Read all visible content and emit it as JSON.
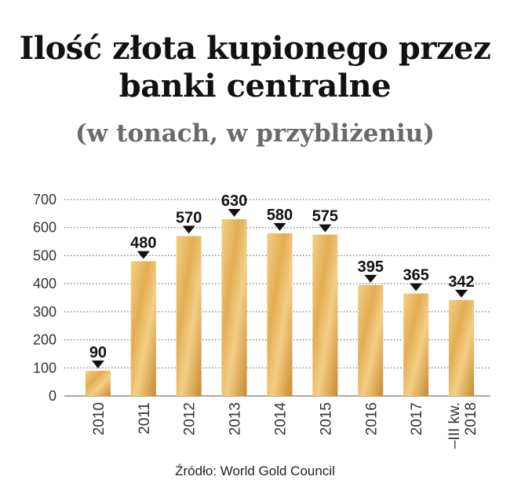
{
  "title_line1": "Ilość złota kupionego przez",
  "title_line2": "banki centralne",
  "subtitle": "(w tonach, w przybliżeniu)",
  "source": "Źródło: World Gold Council",
  "colors": {
    "bar_light": "#f3cf86",
    "bar_mid": "#e3ad52",
    "bar_dark": "#c8892f",
    "grid": "#555555",
    "text": "#111111"
  },
  "chart_data": {
    "type": "bar",
    "categories": [
      "2010",
      "2011",
      "2012",
      "2013",
      "2014",
      "2015",
      "2016",
      "2017",
      "–III kw. 2018"
    ],
    "category_lines": [
      [
        "2010"
      ],
      [
        "2011"
      ],
      [
        "2012"
      ],
      [
        "2013"
      ],
      [
        "2014"
      ],
      [
        "2015"
      ],
      [
        "2016"
      ],
      [
        "2017"
      ],
      [
        "–III kw.",
        "2018"
      ]
    ],
    "values": [
      90,
      480,
      570,
      630,
      580,
      575,
      395,
      365,
      342
    ],
    "ylim": [
      0,
      700
    ],
    "yticks": [
      0,
      100,
      200,
      300,
      400,
      500,
      600,
      700
    ],
    "grid": true,
    "grid_style": "dotted",
    "data_labels": true
  }
}
